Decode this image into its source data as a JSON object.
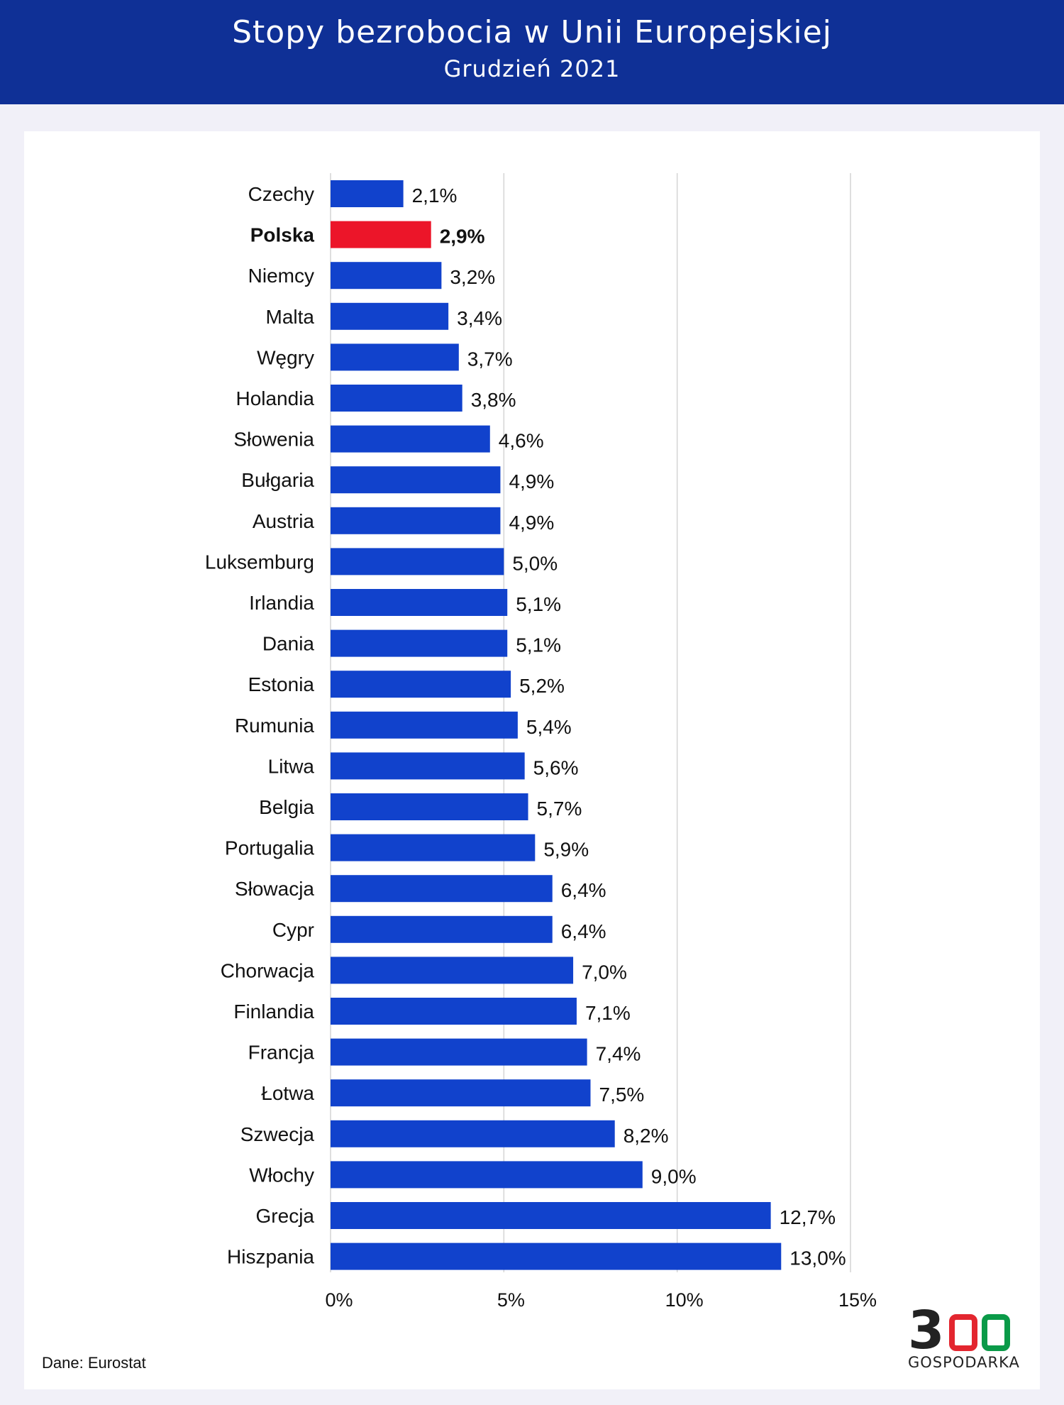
{
  "header": {
    "title": "Stopy bezrobocia w Unii Europejskiej",
    "subtitle": "Grudzień 2021"
  },
  "source": "Dane: Eurostat",
  "logo": {
    "number": "300",
    "text": "GOSPODARKA",
    "colors": [
      "#222222",
      "#e3262f",
      "#0a9a48"
    ]
  },
  "chart_data": {
    "type": "bar",
    "orientation": "horizontal",
    "title": "Stopy bezrobocia w Unii Europejskiej",
    "subtitle": "Grudzień 2021",
    "categories": [
      "Czechy",
      "Polska",
      "Niemcy",
      "Malta",
      "Węgry",
      "Holandia",
      "Słowenia",
      "Bułgaria",
      "Austria",
      "Luksemburg",
      "Irlandia",
      "Dania",
      "Estonia",
      "Rumunia",
      "Litwa",
      "Belgia",
      "Portugalia",
      "Słowacja",
      "Cypr",
      "Chorwacja",
      "Finlandia",
      "Francja",
      "Łotwa",
      "Szwecja",
      "Włochy",
      "Grecja",
      "Hiszpania"
    ],
    "values": [
      2.1,
      2.9,
      3.2,
      3.4,
      3.7,
      3.8,
      4.6,
      4.9,
      4.9,
      5.0,
      5.1,
      5.1,
      5.2,
      5.4,
      5.6,
      5.7,
      5.9,
      6.4,
      6.4,
      7.0,
      7.1,
      7.4,
      7.5,
      8.2,
      9.0,
      12.7,
      13.0
    ],
    "value_labels": [
      "2,1%",
      "2,9%",
      "3,2%",
      "3,4%",
      "3,7%",
      "3,8%",
      "4,6%",
      "4,9%",
      "4,9%",
      "5,0%",
      "5,1%",
      "5,1%",
      "5,2%",
      "5,4%",
      "5,6%",
      "5,7%",
      "5,9%",
      "6,4%",
      "6,4%",
      "7,0%",
      "7,1%",
      "7,4%",
      "7,5%",
      "8,2%",
      "9,0%",
      "12,7%",
      "13,0%"
    ],
    "highlight": "Polska",
    "xlim": [
      0,
      15
    ],
    "xticks": [
      0,
      5,
      10,
      15
    ],
    "xtick_labels": [
      "0%",
      "5%",
      "10%",
      "15%"
    ],
    "grid": true,
    "colors": {
      "bar": "#1142cc",
      "highlight": "#ec1529",
      "grid": "#d4d4d4"
    }
  }
}
